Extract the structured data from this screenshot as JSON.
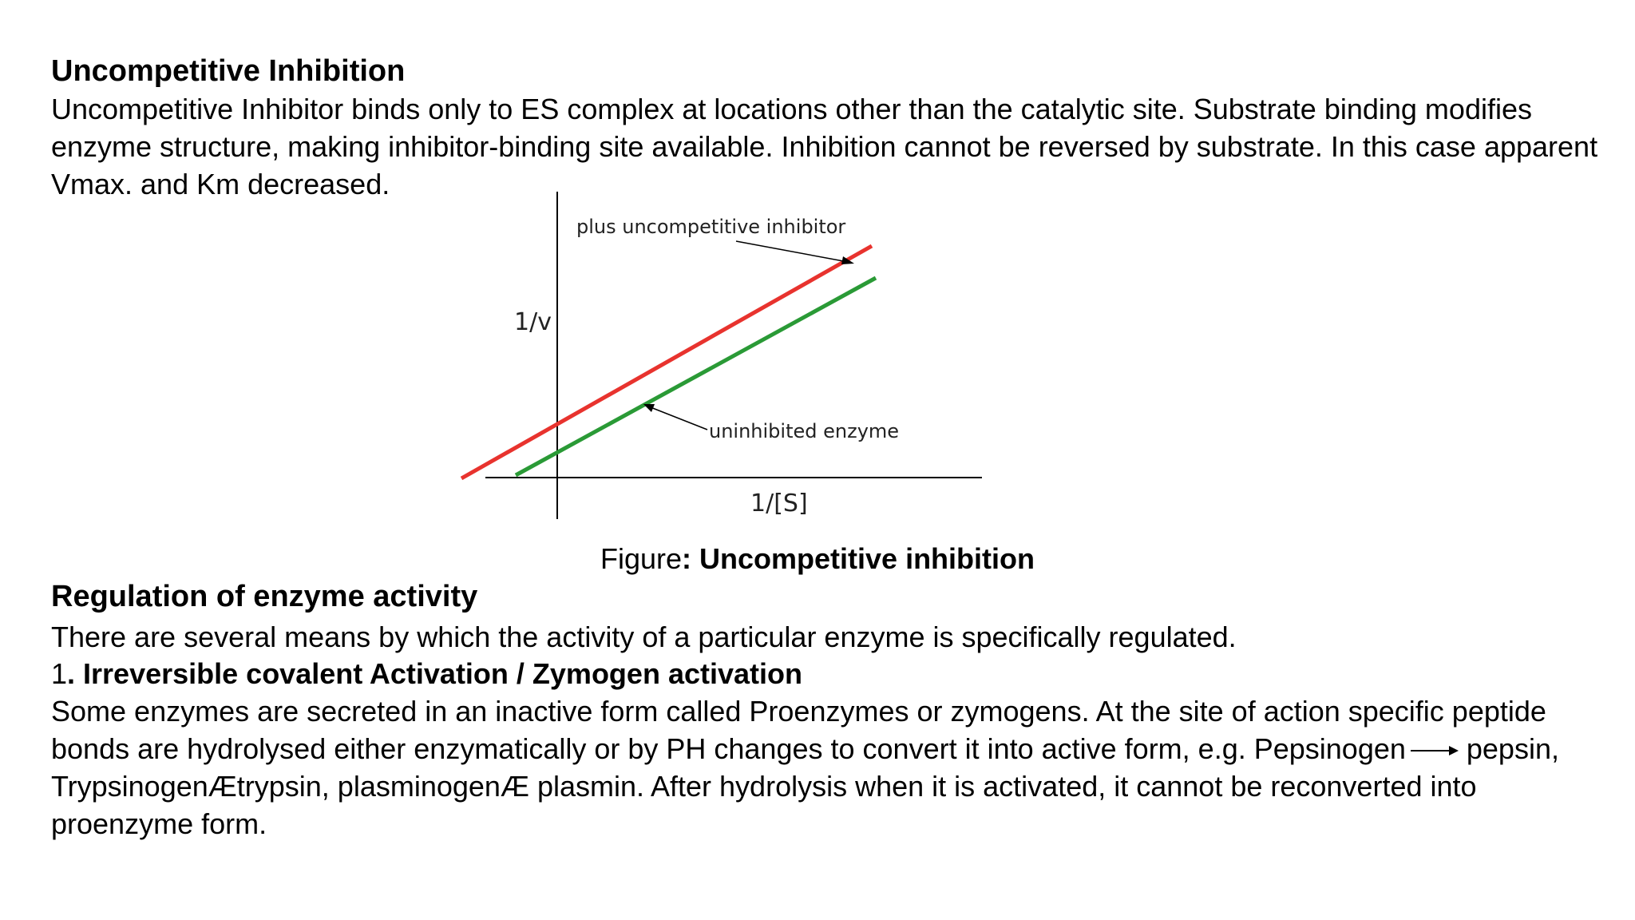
{
  "section1": {
    "title": "Uncompetitive Inhibition",
    "body": "Uncompetitive Inhibitor binds only to ES complex at locations other than the catalytic site. Substrate binding modifies enzyme structure, making inhibitor-binding site available. Inhibition cannot be reversed by substrate. In this case apparent Vmax. and Km decreased."
  },
  "figure": {
    "ylabel": "1/v",
    "xlabel": "1/[S]",
    "label_inhibited": "plus uncompetitive inhibitor",
    "label_uninhibited": "uninhibited enzyme",
    "color_inhibited": "#e8332e",
    "color_uninhibited": "#2a9a36",
    "caption_prefix": "Figure",
    "caption_bold": ": Uncompetitive inhibition"
  },
  "section2": {
    "title": "Regulation of enzyme activity",
    "intro": "There are several means by which the activity of a particular enzyme is specifically regulated.",
    "item_number": "1",
    "item_title": ". Irreversible covalent Activation / Zymogen activation",
    "body_part1": "Some enzymes are secreted in an inactive form called Proenzymes or zymogens. At the site of action specific peptide bonds are hydrolysed either enzymatically or by PH changes to convert it into active form, e.g. Pepsinogen",
    "body_part2": "pepsin, TrypsinogenÆtrypsin, plasminogenÆ plasmin. After hydrolysis when it is activated, it cannot be reconverted into proenzyme form."
  }
}
